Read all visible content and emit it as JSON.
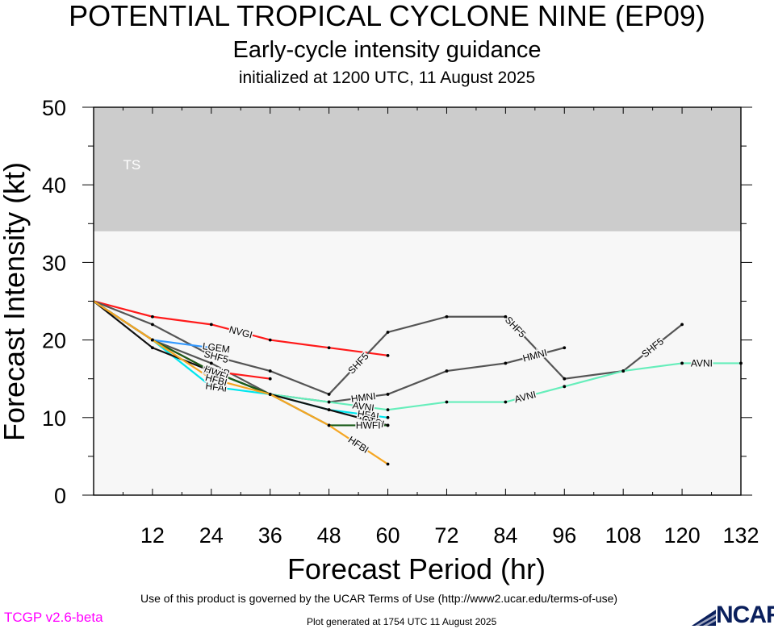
{
  "header": {
    "title": "POTENTIAL TROPICAL CYCLONE NINE (EP09)",
    "subtitle": "Early-cycle intensity guidance",
    "init_line": "initialized at 1200 UTC, 11 August 2025"
  },
  "footer": {
    "terms": "Use of this product is governed by the UCAR Terms of Use (http://www2.ucar.edu/terms-of-use)",
    "version": "TCGP v2.6-beta",
    "generated": "Plot generated at 1754 UTC   11 August 2025",
    "logo_text": "NCAR"
  },
  "chart_data": {
    "type": "line",
    "xlabel": "Forecast Period (hr)",
    "ylabel": "Forecast Intensity (kt)",
    "xlim": [
      0,
      132
    ],
    "ylim": [
      0,
      50
    ],
    "x_ticks": [
      12,
      24,
      36,
      48,
      60,
      72,
      84,
      96,
      108,
      120,
      132
    ],
    "y_ticks": [
      0,
      10,
      20,
      30,
      40,
      50
    ],
    "bands": [
      {
        "label": "TS",
        "from": 34,
        "to": 50,
        "color": "#cccccc"
      },
      {
        "label": "",
        "from": 0,
        "to": 34,
        "color": "#f7f7f7"
      }
    ],
    "series": [
      {
        "name": "NVGI",
        "color": "#ff1a1a",
        "x": [
          0,
          12,
          24,
          36,
          48,
          60
        ],
        "values": [
          25,
          23,
          22,
          20,
          19,
          18
        ],
        "label_at": 30
      },
      {
        "name": "SHF5",
        "color": "#555555",
        "x": [
          0,
          12,
          24,
          36,
          48,
          60,
          72,
          84,
          96,
          108,
          120
        ],
        "values": [
          25,
          22,
          18,
          16,
          13,
          21,
          23,
          23,
          15,
          16,
          22
        ],
        "label_at": [
          25,
          54,
          86,
          114
        ]
      },
      {
        "name": "HMNI",
        "color": "#555555",
        "x": [
          0,
          12,
          24,
          36,
          48,
          60,
          72,
          84,
          96
        ],
        "values": [
          25,
          20,
          17,
          13,
          12,
          13,
          16,
          17,
          19
        ],
        "label_at": [
          55,
          90
        ]
      },
      {
        "name": "AVNI",
        "color": "#66eebb",
        "x": [
          0,
          12,
          24,
          36,
          48,
          60,
          72,
          84,
          96,
          108,
          120,
          132
        ],
        "values": [
          25,
          20,
          16,
          13,
          12,
          11,
          12,
          12,
          14,
          16,
          17,
          17
        ],
        "label_at": [
          55,
          88,
          124
        ]
      },
      {
        "name": "HFAI",
        "color": "#00e6ee",
        "x": [
          0,
          12,
          24,
          36,
          48,
          60
        ],
        "values": [
          25,
          20,
          14,
          13,
          11,
          10
        ],
        "label_at": [
          25,
          56
        ]
      },
      {
        "name": "DSHP",
        "color": "#ff1a1a",
        "x": [
          0,
          12,
          24,
          36
        ],
        "values": [
          25,
          20,
          16,
          15
        ],
        "label_at": 25
      },
      {
        "name": "LGEM",
        "color": "#3399ff",
        "x": [
          0,
          12,
          24
        ],
        "values": [
          25,
          20,
          19
        ],
        "label_at": 25
      },
      {
        "name": "CTCI",
        "color": "#111111",
        "x": [
          0,
          12,
          24,
          36,
          48,
          60
        ],
        "values": [
          25,
          19,
          16,
          13,
          11,
          9
        ],
        "label_at": [
          25,
          57
        ]
      },
      {
        "name": "HWFI",
        "color": "#1a5c1a",
        "x": [
          0,
          12,
          24,
          36,
          48,
          60
        ],
        "values": [
          25,
          20,
          16,
          13,
          9,
          9
        ],
        "label_at": [
          25,
          56
        ]
      },
      {
        "name": "HFBI",
        "color": "#f5a623",
        "x": [
          0,
          12,
          24,
          36,
          48,
          60
        ],
        "values": [
          25,
          20,
          15,
          13,
          9,
          4
        ],
        "label_at": [
          25,
          54
        ]
      }
    ]
  }
}
